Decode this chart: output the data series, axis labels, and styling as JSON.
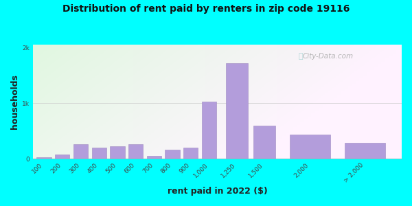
{
  "title": "Distribution of rent paid by renters in zip code 19116",
  "xlabel": "rent paid in 2022 ($)",
  "ylabel": "households",
  "background_outer": "#00FFFF",
  "bar_color": "#b39ddb",
  "bar_edge_color": "#9e8ac0",
  "categories": [
    "100",
    "200",
    "300",
    "400",
    "500",
    "600",
    "700",
    "800",
    "900",
    "1,000",
    "1,250",
    "1,500",
    "2,000",
    "> 2,000"
  ],
  "values": [
    28,
    80,
    265,
    195,
    220,
    265,
    50,
    165,
    195,
    1020,
    1720,
    590,
    430,
    285
  ],
  "x_positions": [
    0,
    1,
    2,
    3,
    4,
    5,
    6,
    7,
    8,
    9,
    10.5,
    12,
    14.5,
    17.5
  ],
  "bar_widths": [
    0.8,
    0.8,
    0.8,
    0.8,
    0.8,
    0.8,
    0.8,
    0.8,
    0.8,
    0.8,
    1.2,
    1.2,
    2.2,
    2.2
  ],
  "yticks": [
    0,
    1000,
    2000
  ],
  "ylim": [
    0,
    2050
  ],
  "xlim": [
    -0.6,
    19.5
  ],
  "watermark": "City-Data.com"
}
